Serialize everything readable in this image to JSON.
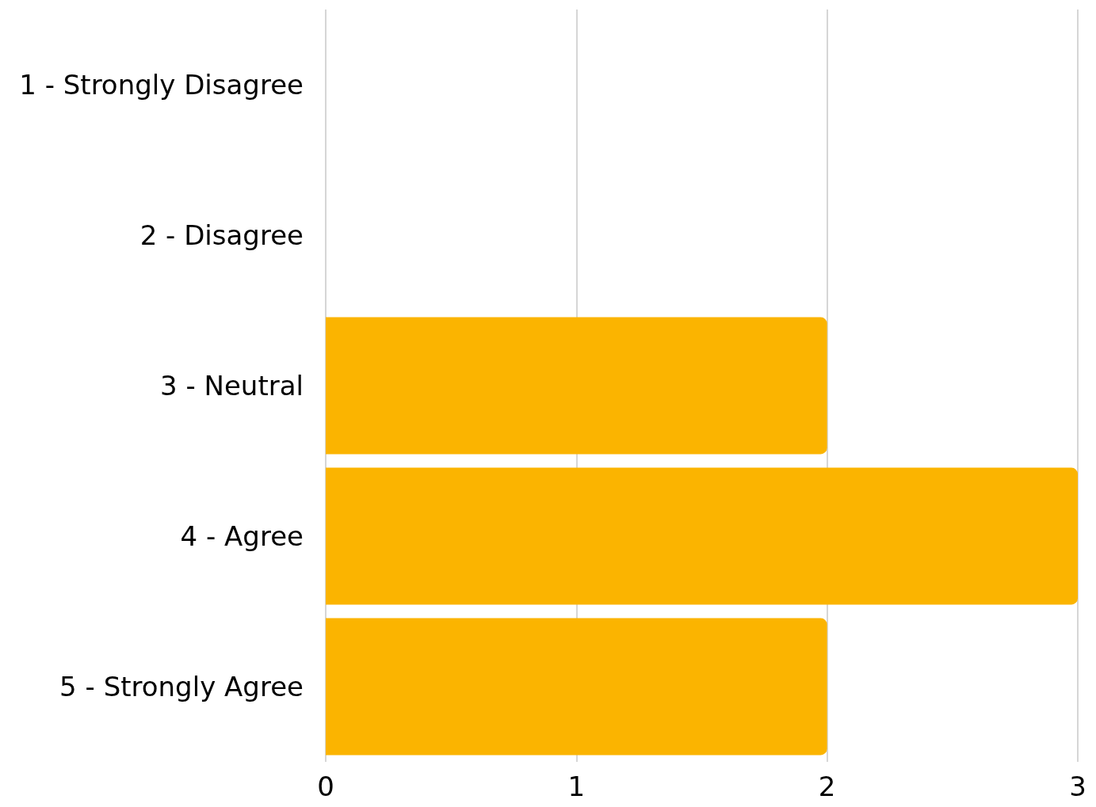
{
  "chart_data": {
    "type": "bar",
    "orientation": "horizontal",
    "categories": [
      "1 - Strongly Disagree",
      "2 - Disagree",
      "3 - Neutral",
      "4 - Agree",
      "5 - Strongly Agree"
    ],
    "values": [
      0,
      0,
      2,
      3,
      2
    ],
    "color": "#fbb400",
    "xlim": [
      0,
      3
    ],
    "xticks": [
      0,
      1,
      2,
      3
    ],
    "grid": "x"
  }
}
